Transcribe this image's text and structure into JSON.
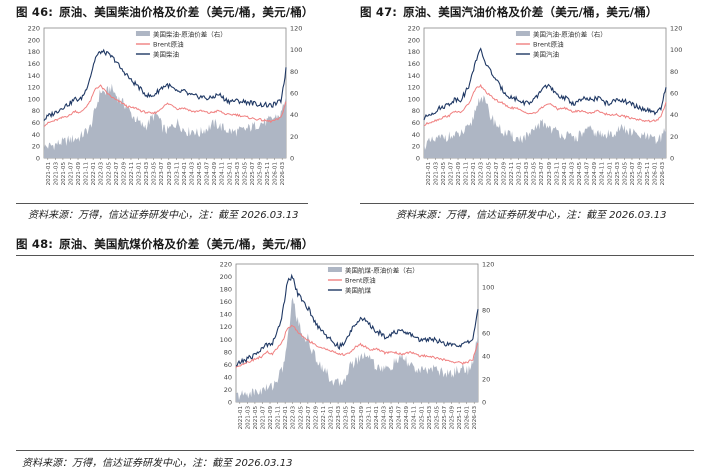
{
  "figures": [
    {
      "number": "图 46:",
      "title": "原油、美国柴油价格及价差（美元/桶，美元/桶）",
      "source": "资料来源：万得，信达证券研发中心，注：截至 2026.03.13"
    },
    {
      "number": "图 47:",
      "title": "原油、美国汽油价格及价差（美元/桶，美元/桶）",
      "source": "资料来源：万得，信达证券研发中心，注：截至 2026.03.13"
    },
    {
      "number": "图 48:",
      "title": "原油、美国航煤价格及价差（美元/桶，美元/桶）",
      "source": "资料来源：万得，信达证券研发中心，注：截至 2026.03.13"
    }
  ],
  "colors": {
    "spread": "#aeb6c4",
    "brent": "#f08080",
    "product": "#1f3864",
    "axis": "#888888"
  },
  "chart_data": [
    {
      "type": "line",
      "y_left_ticks": [
        "0",
        "20",
        "40",
        "60",
        "80",
        "100",
        "120",
        "140",
        "160",
        "180",
        "200",
        "220"
      ],
      "y_right_ticks": [
        "0",
        "20",
        "40",
        "60",
        "80",
        "100",
        "120"
      ],
      "ylim_left": [
        0,
        220
      ],
      "ylim_right": [
        0,
        120
      ],
      "x_ticks": [
        "2021-01",
        "2021-03",
        "2021-05",
        "2021-07",
        "2021-09",
        "2021-11",
        "2022-01",
        "2022-03",
        "2022-05",
        "2022-07",
        "2022-09",
        "2022-11",
        "2023-01",
        "2023-03",
        "2023-05",
        "2023-07",
        "2023-09",
        "2023-11",
        "2024-01",
        "2024-03",
        "2024-05",
        "2024-07",
        "2024-09",
        "2024-11",
        "2025-01",
        "2025-03",
        "2025-05",
        "2025-07",
        "2025-09",
        "2025-11",
        "2026-01",
        "2026-03"
      ],
      "legend_position": "top-center",
      "series": [
        {
          "name": "美国柴油-原油价差（右）",
          "axis": "right",
          "kind": "area",
          "values": [
            10,
            11,
            12,
            14,
            15,
            17,
            18,
            19,
            24,
            28,
            45,
            62,
            60,
            65,
            58,
            52,
            48,
            40,
            35,
            30,
            30,
            38,
            40,
            28,
            25,
            30,
            33,
            27,
            24,
            26,
            22,
            26,
            28,
            32,
            30,
            27,
            25,
            24,
            25,
            26,
            28,
            30,
            32,
            33,
            35,
            38,
            40,
            58
          ]
        },
        {
          "name": "Brent原油",
          "axis": "left",
          "kind": "line",
          "values": [
            55,
            60,
            63,
            66,
            70,
            72,
            80,
            76,
            85,
            96,
            118,
            122,
            112,
            104,
            98,
            94,
            88,
            85,
            84,
            79,
            77,
            75,
            78,
            86,
            92,
            89,
            83,
            85,
            82,
            78,
            80,
            79,
            76,
            78,
            80,
            75,
            73,
            74,
            72,
            70,
            68,
            66,
            65,
            63,
            62,
            64,
            68,
            95
          ]
        },
        {
          "name": "美国柴油",
          "axis": "left",
          "kind": "line",
          "values": [
            65,
            72,
            76,
            82,
            88,
            92,
            100,
            98,
            112,
            138,
            170,
            180,
            178,
            172,
            164,
            150,
            142,
            130,
            124,
            114,
            106,
            104,
            112,
            120,
            124,
            118,
            110,
            114,
            108,
            105,
            104,
            103,
            100,
            104,
            108,
            100,
            96,
            97,
            96,
            95,
            94,
            92,
            90,
            90,
            88,
            92,
            96,
            150
          ]
        }
      ]
    },
    {
      "type": "line",
      "y_left_ticks": [
        "0",
        "20",
        "40",
        "60",
        "80",
        "100",
        "120",
        "140",
        "160",
        "180",
        "200",
        "220"
      ],
      "y_right_ticks": [
        "0",
        "20",
        "40",
        "60",
        "80",
        "100",
        "120"
      ],
      "ylim_left": [
        0,
        220
      ],
      "ylim_right": [
        0,
        120
      ],
      "x_ticks": [
        "2021-01",
        "2021-03",
        "2021-05",
        "2021-07",
        "2021-09",
        "2021-11",
        "2022-01",
        "2022-03",
        "2022-05",
        "2022-07",
        "2022-09",
        "2022-11",
        "2023-01",
        "2023-03",
        "2023-05",
        "2023-07",
        "2023-09",
        "2023-11",
        "2024-01",
        "2024-03",
        "2024-05",
        "2024-07",
        "2024-09",
        "2024-11",
        "2025-01",
        "2025-03",
        "2025-05",
        "2025-07",
        "2025-09",
        "2025-11",
        "2026-01",
        "2026-03"
      ],
      "legend_position": "top-center",
      "series": [
        {
          "name": "美国汽油-原油价差（右）",
          "axis": "right",
          "kind": "area",
          "values": [
            12,
            14,
            16,
            18,
            20,
            20,
            20,
            22,
            25,
            28,
            45,
            58,
            50,
            38,
            32,
            25,
            22,
            20,
            18,
            18,
            20,
            22,
            30,
            32,
            30,
            26,
            24,
            22,
            20,
            18,
            20,
            24,
            26,
            24,
            22,
            20,
            22,
            24,
            28,
            26,
            24,
            22,
            20,
            20,
            18,
            16,
            18,
            30
          ]
        },
        {
          "name": "Brent原油",
          "axis": "left",
          "kind": "line",
          "values": [
            55,
            60,
            63,
            66,
            70,
            72,
            80,
            76,
            85,
            96,
            118,
            122,
            112,
            104,
            98,
            94,
            88,
            85,
            84,
            79,
            77,
            75,
            78,
            86,
            92,
            89,
            83,
            85,
            82,
            78,
            80,
            79,
            76,
            78,
            80,
            75,
            73,
            74,
            72,
            70,
            68,
            66,
            65,
            63,
            62,
            64,
            68,
            95
          ]
        },
        {
          "name": "美国汽油",
          "axis": "left",
          "kind": "line",
          "values": [
            66,
            74,
            78,
            84,
            88,
            92,
            100,
            98,
            110,
            128,
            165,
            182,
            160,
            146,
            132,
            118,
            108,
            102,
            100,
            94,
            94,
            94,
            104,
            118,
            124,
            114,
            104,
            104,
            98,
            92,
            96,
            100,
            98,
            100,
            102,
            94,
            92,
            96,
            100,
            96,
            92,
            88,
            84,
            82,
            78,
            76,
            82,
            120
          ]
        }
      ]
    },
    {
      "type": "line",
      "y_left_ticks": [
        "0",
        "20",
        "40",
        "60",
        "80",
        "100",
        "120",
        "140",
        "160",
        "180",
        "200",
        "220"
      ],
      "y_right_ticks": [
        "0",
        "20",
        "40",
        "60",
        "80",
        "100",
        "120"
      ],
      "ylim_left": [
        0,
        220
      ],
      "ylim_right": [
        0,
        120
      ],
      "x_ticks": [
        "2021-01",
        "2021-03",
        "2021-05",
        "2021-07",
        "2021-09",
        "2021-11",
        "2022-01",
        "2022-03",
        "2022-05",
        "2022-07",
        "2022-09",
        "2022-11",
        "2023-01",
        "2023-03",
        "2023-05",
        "2023-07",
        "2023-09",
        "2023-11",
        "2024-01",
        "2024-03",
        "2024-05",
        "2024-07",
        "2024-09",
        "2024-11",
        "2025-01",
        "2025-03",
        "2025-05",
        "2025-07",
        "2025-09",
        "2025-11",
        "2026-01",
        "2026-03"
      ],
      "legend_position": "top-center",
      "series": [
        {
          "name": "美国航煤-原油价差（右）",
          "axis": "right",
          "kind": "area",
          "values": [
            5,
            6,
            7,
            8,
            9,
            10,
            12,
            14,
            20,
            28,
            52,
            92,
            70,
            58,
            55,
            42,
            35,
            30,
            22,
            18,
            15,
            20,
            30,
            35,
            38,
            42,
            40,
            32,
            30,
            28,
            30,
            35,
            38,
            36,
            32,
            28,
            26,
            28,
            30,
            28,
            26,
            24,
            25,
            28,
            30,
            28,
            32,
            60
          ]
        },
        {
          "name": "Brent原油",
          "axis": "left",
          "kind": "line",
          "values": [
            55,
            60,
            63,
            66,
            70,
            72,
            80,
            76,
            85,
            96,
            118,
            122,
            112,
            104,
            98,
            94,
            88,
            85,
            84,
            79,
            77,
            75,
            78,
            86,
            92,
            89,
            83,
            85,
            82,
            78,
            80,
            79,
            76,
            78,
            80,
            75,
            73,
            74,
            72,
            70,
            68,
            66,
            65,
            63,
            62,
            64,
            68,
            95
          ]
        },
        {
          "name": "美国航煤",
          "axis": "left",
          "kind": "line",
          "values": [
            58,
            64,
            68,
            72,
            78,
            84,
            92,
            94,
            110,
            140,
            195,
            200,
            172,
            160,
            150,
            132,
            120,
            112,
            102,
            94,
            88,
            92,
            108,
            124,
            132,
            130,
            122,
            114,
            110,
            104,
            108,
            112,
            112,
            110,
            108,
            102,
            98,
            100,
            102,
            98,
            94,
            92,
            90,
            91,
            92,
            94,
            100,
            150
          ]
        }
      ]
    }
  ]
}
